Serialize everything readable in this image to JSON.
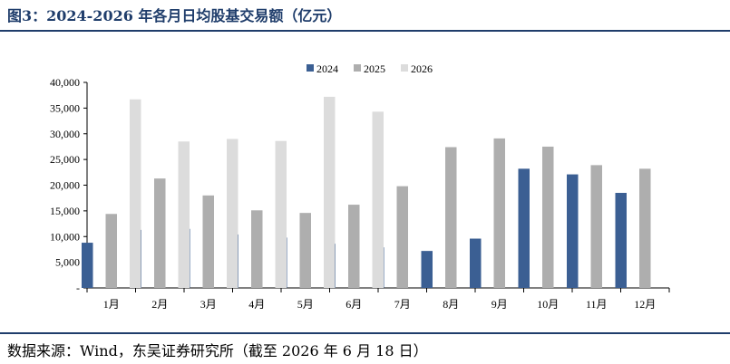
{
  "figure": {
    "title": "图3：2024-2026 年各月日均股基交易额（亿元）",
    "source": "数据来源：Wind，东吴证券研究所（截至 2026 年 6 月 18 日）"
  },
  "chart_data": {
    "type": "bar",
    "title": "2024-2026 年各月日均股基交易额（亿元）",
    "xlabel": "",
    "ylabel": "",
    "categories": [
      "1月",
      "2月",
      "3月",
      "4月",
      "5月",
      "6月",
      "7月",
      "8月",
      "9月",
      "10月",
      "11月",
      "12月"
    ],
    "series": [
      {
        "name": "2024",
        "color": "#3b5f93",
        "values": [
          8800,
          11300,
          11500,
          10400,
          9800,
          8600,
          7900,
          7200,
          9600,
          23200,
          22100,
          18500
        ]
      },
      {
        "name": "2025",
        "color": "#aeaeae",
        "values": [
          14400,
          21300,
          18000,
          15100,
          14600,
          16200,
          19800,
          27400,
          29100,
          27500,
          23900,
          23200
        ]
      },
      {
        "name": "2026",
        "color": "#dcdcdc",
        "values": [
          36700,
          28500,
          29000,
          28600,
          37200,
          34300,
          null,
          null,
          null,
          null,
          null,
          null
        ]
      }
    ],
    "ylim": [
      0,
      40000
    ],
    "yticks": [
      "-",
      "5,000",
      "10,000",
      "15,000",
      "20,000",
      "25,000",
      "30,000",
      "35,000",
      "40,000"
    ],
    "legend_position": "top-center",
    "grid": false
  }
}
